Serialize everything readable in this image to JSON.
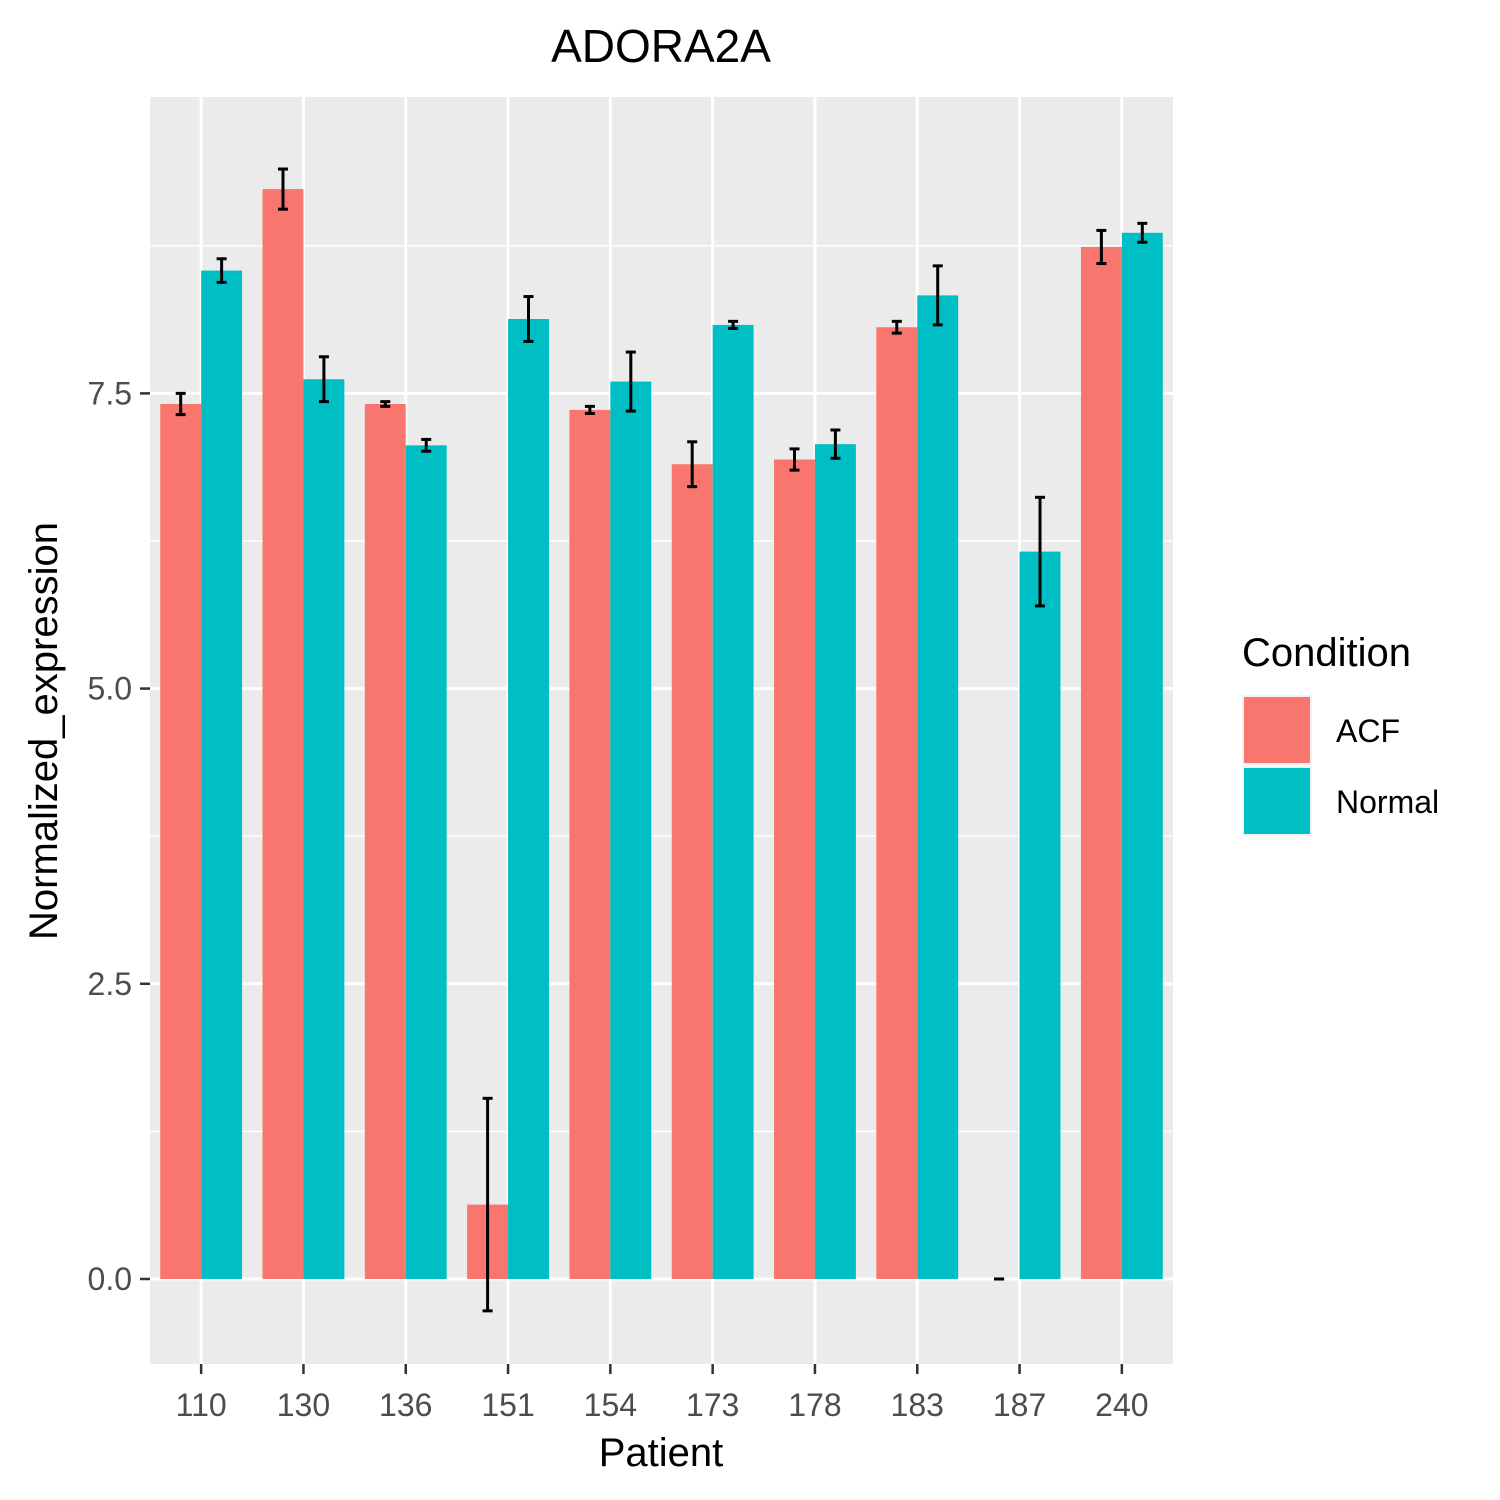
{
  "chart_data": {
    "type": "bar",
    "title": "ADORA2A",
    "xlabel": "Patient",
    "ylabel": "Normalized_expression",
    "categories": [
      "110",
      "130",
      "136",
      "151",
      "154",
      "173",
      "178",
      "183",
      "187",
      "240"
    ],
    "series": [
      {
        "name": "ACF",
        "color": "#F8766D",
        "values": [
          7.41,
          9.23,
          7.41,
          0.63,
          7.36,
          6.9,
          6.94,
          8.06,
          0.0,
          8.74
        ],
        "error_low": [
          7.32,
          9.06,
          7.39,
          -0.27,
          7.33,
          6.71,
          6.85,
          8.01,
          0.0,
          8.6
        ],
        "error_high": [
          7.5,
          9.4,
          7.43,
          1.53,
          7.39,
          7.09,
          7.03,
          8.11,
          0.0,
          8.88
        ]
      },
      {
        "name": "Normal",
        "color": "#00BFC4",
        "values": [
          8.54,
          7.62,
          7.06,
          8.13,
          7.6,
          8.08,
          7.07,
          8.33,
          6.16,
          8.86
        ],
        "error_low": [
          8.44,
          7.43,
          7.01,
          7.94,
          7.35,
          8.05,
          6.95,
          8.08,
          5.7,
          8.78
        ],
        "error_high": [
          8.64,
          7.81,
          7.11,
          8.32,
          7.85,
          8.11,
          7.19,
          8.58,
          6.62,
          8.94
        ]
      }
    ],
    "ylim": [
      -0.72,
      10.01
    ],
    "yticks": [
      0.0,
      2.5,
      5.0,
      7.5
    ],
    "ytick_labels": [
      "0.0",
      "2.5",
      "5.0",
      "7.5"
    ],
    "grid": true,
    "legend": {
      "title": "Condition",
      "position": "right"
    }
  }
}
